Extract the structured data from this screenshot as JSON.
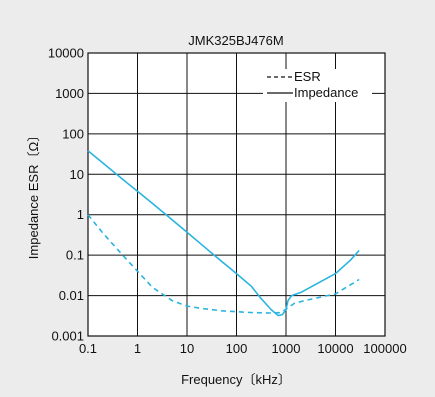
{
  "chart_data": {
    "type": "line",
    "title": "JMK325BJ476M",
    "xlabel": "Frequency〔kHz〕",
    "ylabel": "Impedance ESR〔Ω〕",
    "x_scale": "log",
    "y_scale": "log",
    "xlim": [
      0.1,
      100000
    ],
    "ylim": [
      0.001,
      10000
    ],
    "x_ticks": [
      "0.1",
      "1",
      "10",
      "100",
      "1000",
      "10000",
      "100000"
    ],
    "y_ticks": [
      "0.001",
      "0.01",
      "0.1",
      "1",
      "10",
      "100",
      "1000",
      "10000"
    ],
    "grid": true,
    "legend_position": "top-right",
    "series": [
      {
        "name": "ESR",
        "style": "dashed",
        "color": "#2ab4e0",
        "x": [
          0.1,
          0.2,
          0.5,
          1,
          2,
          5,
          10,
          20,
          50,
          100,
          200,
          500,
          800,
          1000,
          1500,
          3000,
          10000,
          30000
        ],
        "y": [
          1.0,
          0.35,
          0.1,
          0.04,
          0.016,
          0.0075,
          0.0055,
          0.0048,
          0.0042,
          0.004,
          0.0038,
          0.0037,
          0.0038,
          0.0046,
          0.0065,
          0.008,
          0.011,
          0.025
        ]
      },
      {
        "name": "Impedance",
        "style": "solid",
        "color": "#2ab4e0",
        "x": [
          0.1,
          0.2,
          0.5,
          1,
          2,
          5,
          10,
          20,
          50,
          100,
          200,
          300,
          500,
          700,
          850,
          1000,
          1100,
          1300,
          2000,
          5000,
          10000,
          20000,
          30000
        ],
        "y": [
          38,
          19,
          7.5,
          3.8,
          1.9,
          0.75,
          0.37,
          0.18,
          0.07,
          0.035,
          0.017,
          0.009,
          0.0045,
          0.0032,
          0.0034,
          0.0045,
          0.0075,
          0.01,
          0.012,
          0.022,
          0.035,
          0.075,
          0.13
        ]
      }
    ]
  },
  "legend": {
    "items": [
      {
        "label": "ESR",
        "style": "dashed"
      },
      {
        "label": "Impedance",
        "style": "solid"
      }
    ]
  }
}
